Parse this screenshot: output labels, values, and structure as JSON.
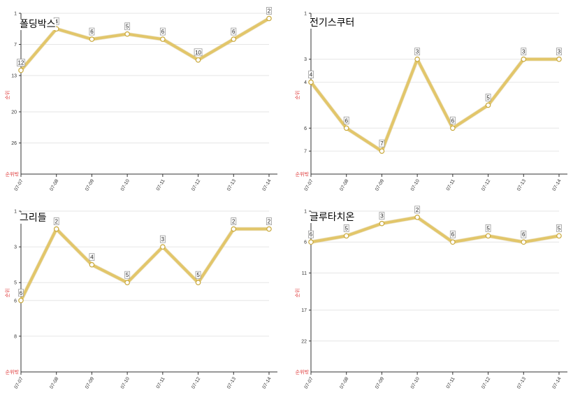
{
  "chart_data": [
    {
      "type": "line",
      "title": "폴딩박스",
      "ylabel": "순위",
      "y_axis_end_label": "순위밖",
      "y_ticks": [
        1,
        7,
        13,
        20,
        26
      ],
      "ylim": [
        1,
        32
      ],
      "y_inverted": true,
      "categories": [
        "07-07",
        "07-08",
        "07-09",
        "07-10",
        "07-11",
        "07-12",
        "07-13",
        "07-14"
      ],
      "values": [
        12,
        4,
        6,
        5,
        6,
        10,
        6,
        2
      ],
      "line_color": "#e2c66a"
    },
    {
      "type": "line",
      "title": "전기스쿠터",
      "ylabel": "순위",
      "y_axis_end_label": "순위밖",
      "y_ticks": [
        1,
        3,
        4,
        6,
        7
      ],
      "ylim": [
        1,
        8
      ],
      "y_inverted": true,
      "categories": [
        "07-07",
        "07-08",
        "07-09",
        "07-10",
        "07-11",
        "07-12",
        "07-13",
        "07-14"
      ],
      "values": [
        4,
        6,
        7,
        3,
        6,
        5,
        3,
        3
      ],
      "line_color": "#e2c66a"
    },
    {
      "type": "line",
      "title": "그리들",
      "ylabel": "순위",
      "y_axis_end_label": "순위밖",
      "y_ticks": [
        1,
        3,
        5,
        6,
        8
      ],
      "ylim": [
        1,
        10
      ],
      "y_inverted": true,
      "categories": [
        "07-07",
        "07-08",
        "07-09",
        "07-10",
        "07-11",
        "07-12",
        "07-13",
        "07-14"
      ],
      "values": [
        6,
        2,
        4,
        5,
        3,
        5,
        2,
        2
      ],
      "line_color": "#e2c66a"
    },
    {
      "type": "line",
      "title": "글루타치온",
      "ylabel": "순위",
      "y_axis_end_label": "순위밖",
      "y_ticks": [
        1,
        6,
        11,
        17,
        22
      ],
      "ylim": [
        1,
        27
      ],
      "y_inverted": true,
      "categories": [
        "07-07",
        "07-08",
        "07-09",
        "07-10",
        "07-11",
        "07-12",
        "07-13",
        "07-14"
      ],
      "values": [
        6,
        5,
        3,
        2,
        6,
        5,
        6,
        5
      ],
      "line_color": "#e2c66a"
    }
  ]
}
